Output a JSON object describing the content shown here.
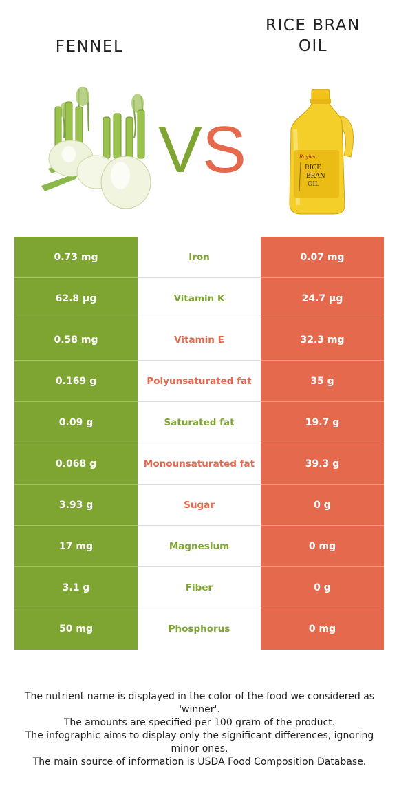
{
  "foods": {
    "left": {
      "name": "FENNEL",
      "color": "#7ea432"
    },
    "right": {
      "name_line1": "RICE BRAN",
      "name_line2": "OIL",
      "color": "#e4694d"
    }
  },
  "vs": {
    "v": "V",
    "s": "S"
  },
  "bottle_label": {
    "brand": "Royles",
    "line1": "RICE",
    "line2": "BRAN",
    "line3": "OIL"
  },
  "rows": [
    {
      "nutrient": "Iron",
      "left": "0.73 mg",
      "right": "0.07 mg",
      "winner": "left"
    },
    {
      "nutrient": "Vitamin K",
      "left": "62.8 µg",
      "right": "24.7 µg",
      "winner": "left"
    },
    {
      "nutrient": "Vitamin E",
      "left": "0.58 mg",
      "right": "32.3 mg",
      "winner": "right"
    },
    {
      "nutrient": "Polyunsaturated fat",
      "left": "0.169 g",
      "right": "35 g",
      "winner": "right"
    },
    {
      "nutrient": "Saturated fat",
      "left": "0.09 g",
      "right": "19.7 g",
      "winner": "left"
    },
    {
      "nutrient": "Monounsaturated fat",
      "left": "0.068 g",
      "right": "39.3 g",
      "winner": "right"
    },
    {
      "nutrient": "Sugar",
      "left": "3.93 g",
      "right": "0 g",
      "winner": "right"
    },
    {
      "nutrient": "Magnesium",
      "left": "17 mg",
      "right": "0 mg",
      "winner": "left"
    },
    {
      "nutrient": "Fiber",
      "left": "3.1 g",
      "right": "0 g",
      "winner": "left"
    },
    {
      "nutrient": "Phosphorus",
      "left": "50 mg",
      "right": "0 mg",
      "winner": "left"
    }
  ],
  "footnote": [
    "The nutrient name is displayed in the color of the food we considered as 'winner'.",
    "The amounts are specified per 100 gram of the product.",
    "The infographic aims to display only the significant differences, ignoring minor ones.",
    "The main source of information is USDA Food Composition Database."
  ]
}
